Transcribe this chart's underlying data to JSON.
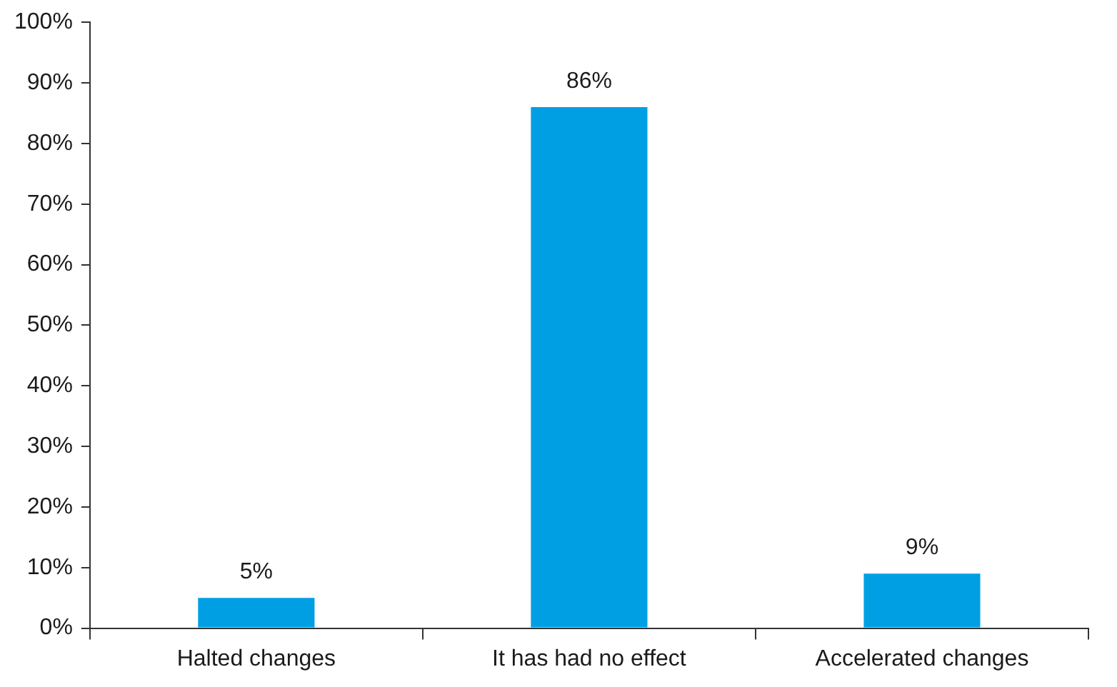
{
  "chart_data": {
    "type": "bar",
    "categories": [
      "Halted changes",
      "It has had no effect",
      "Accelerated changes"
    ],
    "values": [
      5,
      86,
      9
    ],
    "value_labels": [
      "5%",
      "86%",
      "9%"
    ],
    "color": "#009fe3",
    "grid": false,
    "legend": false,
    "ylim": [
      0,
      100
    ],
    "yticks": [
      {
        "value": 0,
        "label": "0%"
      },
      {
        "value": 10,
        "label": "10%"
      },
      {
        "value": 20,
        "label": "20%"
      },
      {
        "value": 30,
        "label": "30%"
      },
      {
        "value": 40,
        "label": "40%"
      },
      {
        "value": 50,
        "label": "50%"
      },
      {
        "value": 60,
        "label": "60%"
      },
      {
        "value": 70,
        "label": "70%"
      },
      {
        "value": 80,
        "label": "80%"
      },
      {
        "value": 90,
        "label": "90%"
      },
      {
        "value": 100,
        "label": "100%"
      }
    ]
  }
}
